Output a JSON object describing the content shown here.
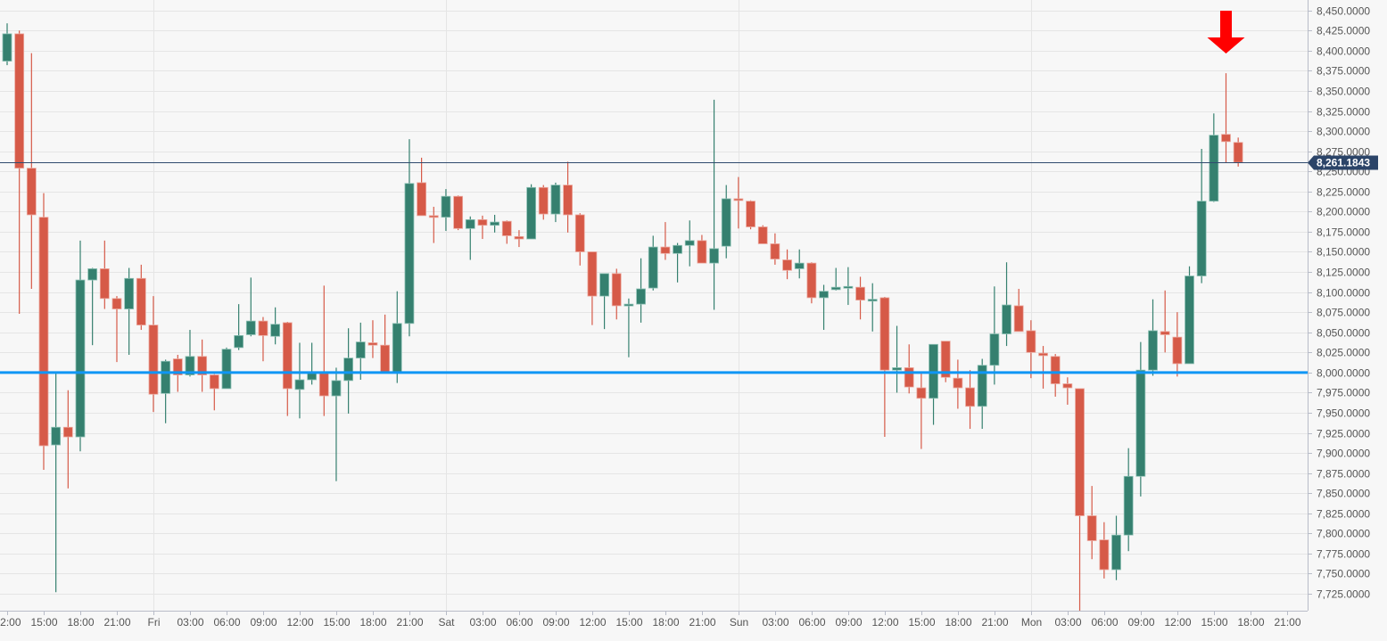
{
  "chart_data": {
    "type": "candlestick",
    "interval": "1h",
    "ylim": [
      7704,
      8463
    ],
    "grid": true,
    "colors": {
      "up": "#35806f",
      "down": "#d65a48",
      "support_line": "#0f96f5",
      "last_price_line": "#2f4a6e",
      "arrow": "#ff0000",
      "background": "#f7f7f7",
      "grid": "#e5e5e5"
    },
    "y_ticks": [
      8450,
      8425,
      8400,
      8375,
      8350,
      8325,
      8300,
      8275,
      8250,
      8225,
      8200,
      8175,
      8150,
      8125,
      8100,
      8075,
      8050,
      8025,
      8000,
      7975,
      7950,
      7925,
      7900,
      7875,
      7850,
      7825,
      7800,
      7775,
      7750,
      7725
    ],
    "y_tick_labels": [
      "8,450.0000",
      "8,425.0000",
      "8,400.0000",
      "8,375.0000",
      "8,350.0000",
      "8,325.0000",
      "8,300.0000",
      "8,275.0000",
      "8,250.0000",
      "8,225.0000",
      "8,200.0000",
      "8,175.0000",
      "8,150.0000",
      "8,125.0000",
      "8,100.0000",
      "8,075.0000",
      "8,050.0000",
      "8,025.0000",
      "8,000.0000",
      "7,975.0000",
      "7,950.0000",
      "7,925.0000",
      "7,900.0000",
      "7,875.0000",
      "7,850.0000",
      "7,825.0000",
      "7,800.0000",
      "7,775.0000",
      "7,750.0000",
      "7,725.0000"
    ],
    "x_ticks": [
      {
        "label": "12:00",
        "at": "Thu 12:00"
      },
      {
        "label": "15:00",
        "at": "Thu 15:00"
      },
      {
        "label": "18:00",
        "at": "Thu 18:00"
      },
      {
        "label": "21:00",
        "at": "Thu 21:00"
      },
      {
        "label": "Fri",
        "at": "Fri 00:00",
        "day": true
      },
      {
        "label": "03:00",
        "at": "Fri 03:00"
      },
      {
        "label": "06:00",
        "at": "Fri 06:00"
      },
      {
        "label": "09:00",
        "at": "Fri 09:00"
      },
      {
        "label": "12:00",
        "at": "Fri 12:00"
      },
      {
        "label": "15:00",
        "at": "Fri 15:00"
      },
      {
        "label": "18:00",
        "at": "Fri 18:00"
      },
      {
        "label": "21:00",
        "at": "Fri 21:00"
      },
      {
        "label": "Sat",
        "at": "Sat 00:00",
        "day": true
      },
      {
        "label": "03:00",
        "at": "Sat 03:00"
      },
      {
        "label": "06:00",
        "at": "Sat 06:00"
      },
      {
        "label": "09:00",
        "at": "Sat 09:00"
      },
      {
        "label": "12:00",
        "at": "Sat 12:00"
      },
      {
        "label": "15:00",
        "at": "Sat 15:00"
      },
      {
        "label": "18:00",
        "at": "Sat 18:00"
      },
      {
        "label": "21:00",
        "at": "Sat 21:00"
      },
      {
        "label": "Sun",
        "at": "Sun 00:00",
        "day": true
      },
      {
        "label": "03:00",
        "at": "Sun 03:00"
      },
      {
        "label": "06:00",
        "at": "Sun 06:00"
      },
      {
        "label": "09:00",
        "at": "Sun 09:00"
      },
      {
        "label": "12:00",
        "at": "Sun 12:00"
      },
      {
        "label": "15:00",
        "at": "Sun 15:00"
      },
      {
        "label": "18:00",
        "at": "Sun 18:00"
      },
      {
        "label": "21:00",
        "at": "Sun 21:00"
      },
      {
        "label": "Mon",
        "at": "Mon 00:00",
        "day": true
      },
      {
        "label": "03:00",
        "at": "Mon 03:00"
      },
      {
        "label": "06:00",
        "at": "Mon 06:00"
      },
      {
        "label": "09:00",
        "at": "Mon 09:00"
      },
      {
        "label": "12:00",
        "at": "Mon 12:00"
      },
      {
        "label": "15:00",
        "at": "Mon 15:00"
      },
      {
        "label": "18:00",
        "at": "Mon 18:00"
      },
      {
        "label": "21:00",
        "at": "Mon 21:00"
      }
    ],
    "candles_fields": [
      "time",
      "open",
      "high",
      "low",
      "close"
    ],
    "candles": [
      [
        "Thu 12:00",
        8387,
        8434,
        8382,
        8421
      ],
      [
        "Thu 13:00",
        8421,
        8425,
        8073,
        8254
      ],
      [
        "Thu 14:00",
        8254,
        8397,
        8104,
        8196
      ],
      [
        "Thu 15:00",
        8193,
        8223,
        7879,
        7909
      ],
      [
        "Thu 16:00",
        7910,
        7999,
        7727,
        7932
      ],
      [
        "Thu 17:00",
        7932,
        7978,
        7856,
        7920
      ],
      [
        "Thu 18:00",
        7920,
        8164,
        7902,
        8115
      ],
      [
        "Thu 19:00",
        8115,
        8130,
        8034,
        8129
      ],
      [
        "Thu 20:00",
        8129,
        8164,
        8079,
        8092
      ],
      [
        "Thu 21:00",
        8092,
        8095,
        8013,
        8079
      ],
      [
        "Thu 22:00",
        8079,
        8130,
        8022,
        8117
      ],
      [
        "Thu 23:00",
        8117,
        8134,
        8053,
        8059
      ],
      [
        "Fri 00:00",
        8059,
        8095,
        7951,
        7973
      ],
      [
        "Fri 01:00",
        7974,
        8016,
        7937,
        8014
      ],
      [
        "Fri 02:00",
        8017,
        8022,
        7976,
        7997
      ],
      [
        "Fri 03:00",
        7997,
        8053,
        7995,
        8020
      ],
      [
        "Fri 04:00",
        8020,
        8041,
        7976,
        7997
      ],
      [
        "Fri 05:00",
        7997,
        7998,
        7953,
        7980
      ],
      [
        "Fri 06:00",
        7980,
        8031,
        7980,
        8029
      ],
      [
        "Fri 07:00",
        8031,
        8085,
        8028,
        8046
      ],
      [
        "Fri 08:00",
        8047,
        8118,
        8045,
        8064
      ],
      [
        "Fri 09:00",
        8064,
        8069,
        8014,
        8046
      ],
      [
        "Fri 10:00",
        8045,
        8081,
        8035,
        8060
      ],
      [
        "Fri 11:00",
        8062,
        8063,
        7946,
        7980
      ],
      [
        "Fri 12:00",
        7979,
        8037,
        7943,
        7991
      ],
      [
        "Fri 13:00",
        7991,
        8037,
        7985,
        7999
      ],
      [
        "Fri 14:00",
        7999,
        8108,
        7946,
        7971
      ],
      [
        "Fri 15:00",
        7971,
        8006,
        7865,
        7990
      ],
      [
        "Fri 16:00",
        7990,
        8055,
        7949,
        8018
      ],
      [
        "Fri 17:00",
        8018,
        8062,
        7991,
        8038
      ],
      [
        "Fri 18:00",
        8037,
        8065,
        8018,
        8034
      ],
      [
        "Fri 19:00",
        8034,
        8072,
        8001,
        8001
      ],
      [
        "Fri 20:00",
        8001,
        8101,
        7987,
        8061
      ],
      [
        "Fri 21:00",
        8061,
        8290,
        8045,
        8235
      ],
      [
        "Fri 22:00",
        8236,
        8267,
        8195,
        8195
      ],
      [
        "Fri 23:00",
        8195,
        8206,
        8161,
        8193
      ],
      [
        "Sat 00:00",
        8193,
        8228,
        8176,
        8219
      ],
      [
        "Sat 01:00",
        8219,
        8220,
        8177,
        8179
      ],
      [
        "Sat 02:00",
        8179,
        8194,
        8140,
        8190
      ],
      [
        "Sat 03:00",
        8190,
        8195,
        8166,
        8183
      ],
      [
        "Sat 04:00",
        8183,
        8196,
        8174,
        8187
      ],
      [
        "Sat 05:00",
        8188,
        8189,
        8160,
        8170
      ],
      [
        "Sat 06:00",
        8169,
        8177,
        8156,
        8166
      ],
      [
        "Sat 07:00",
        8166,
        8234,
        8166,
        8230
      ],
      [
        "Sat 08:00",
        8230,
        8233,
        8190,
        8197
      ],
      [
        "Sat 09:00",
        8197,
        8236,
        8187,
        8233
      ],
      [
        "Sat 10:00",
        8233,
        8262,
        8174,
        8196
      ],
      [
        "Sat 11:00",
        8196,
        8198,
        8133,
        8150
      ],
      [
        "Sat 12:00",
        8150,
        8150,
        8059,
        8095
      ],
      [
        "Sat 13:00",
        8095,
        8123,
        8054,
        8123
      ],
      [
        "Sat 14:00",
        8123,
        8129,
        8066,
        8083
      ],
      [
        "Sat 15:00",
        8084,
        8092,
        8019,
        8085
      ],
      [
        "Sat 16:00",
        8085,
        8142,
        8062,
        8104
      ],
      [
        "Sat 17:00",
        8105,
        8170,
        8102,
        8156
      ],
      [
        "Sat 18:00",
        8156,
        8187,
        8140,
        8148
      ],
      [
        "Sat 19:00",
        8148,
        8161,
        8112,
        8158
      ],
      [
        "Sat 20:00",
        8158,
        8189,
        8132,
        8164
      ],
      [
        "Sat 21:00",
        8164,
        8171,
        8136,
        8136
      ],
      [
        "Sat 22:00",
        8136,
        8339,
        8078,
        8154
      ],
      [
        "Sat 23:00",
        8157,
        8233,
        8142,
        8216
      ],
      [
        "Sun 00:00",
        8216,
        8243,
        8179,
        8214
      ],
      [
        "Sun 01:00",
        8213,
        8214,
        8178,
        8181
      ],
      [
        "Sun 02:00",
        8181,
        8183,
        8160,
        8160
      ],
      [
        "Sun 03:00",
        8160,
        8173,
        8134,
        8141
      ],
      [
        "Sun 04:00",
        8140,
        8153,
        8116,
        8127
      ],
      [
        "Sun 05:00",
        8129,
        8153,
        8117,
        8136
      ],
      [
        "Sun 06:00",
        8136,
        8137,
        8086,
        8093
      ],
      [
        "Sun 07:00",
        8093,
        8109,
        8053,
        8101
      ],
      [
        "Sun 08:00",
        8103,
        8130,
        8102,
        8106
      ],
      [
        "Sun 09:00",
        8106,
        8131,
        8084,
        8107
      ],
      [
        "Sun 10:00",
        8106,
        8119,
        8066,
        8090
      ],
      [
        "Sun 11:00",
        8090,
        8111,
        8051,
        8091
      ],
      [
        "Sun 12:00",
        8093,
        8094,
        7920,
        8003
      ],
      [
        "Sun 13:00",
        8003,
        8058,
        7975,
        8006
      ],
      [
        "Sun 14:00",
        8006,
        8035,
        7974,
        7982
      ],
      [
        "Sun 15:00",
        7981,
        7999,
        7905,
        7968
      ],
      [
        "Sun 16:00",
        7968,
        8035,
        7935,
        8035
      ],
      [
        "Sun 17:00",
        8039,
        8039,
        7988,
        7994
      ],
      [
        "Sun 18:00",
        7993,
        8016,
        7955,
        7981
      ],
      [
        "Sun 19:00",
        7981,
        8003,
        7930,
        7958
      ],
      [
        "Sun 20:00",
        7958,
        8017,
        7930,
        8009
      ],
      [
        "Sun 21:00",
        8009,
        8107,
        7985,
        8048
      ],
      [
        "Sun 22:00",
        8048,
        8137,
        8033,
        8084
      ],
      [
        "Sun 23:00",
        8083,
        8104,
        8051,
        8051
      ],
      [
        "Mon 00:00",
        8052,
        8065,
        7993,
        8025
      ],
      [
        "Mon 01:00",
        8024,
        8033,
        7980,
        8021
      ],
      [
        "Mon 02:00",
        8020,
        8023,
        7970,
        7986
      ],
      [
        "Mon 03:00",
        7986,
        7994,
        7960,
        7981
      ],
      [
        "Mon 04:00",
        7980,
        7980,
        7703,
        7822
      ],
      [
        "Mon 05:00",
        7822,
        7859,
        7768,
        7791
      ],
      [
        "Mon 06:00",
        7792,
        7814,
        7744,
        7755
      ],
      [
        "Mon 07:00",
        7755,
        7822,
        7742,
        7798
      ],
      [
        "Mon 08:00",
        7798,
        7906,
        7778,
        7871
      ],
      [
        "Mon 09:00",
        7871,
        8038,
        7846,
        8003
      ],
      [
        "Mon 10:00",
        8003,
        8091,
        7996,
        8052
      ],
      [
        "Mon 11:00",
        8051,
        8102,
        8025,
        8047
      ],
      [
        "Mon 12:00",
        8044,
        8075,
        7995,
        8011
      ],
      [
        "Mon 13:00",
        8011,
        8132,
        8011,
        8120
      ],
      [
        "Mon 14:00",
        8120,
        8278,
        8111,
        8213
      ],
      [
        "Mon 15:00",
        8213,
        8322,
        8212,
        8295
      ],
      [
        "Mon 16:00",
        8296,
        8372,
        8261,
        8287
      ],
      [
        "Mon 17:00",
        8286,
        8292,
        8256,
        8261.1843
      ]
    ],
    "horizontal_line": {
      "value": 8000
    },
    "last_price": {
      "value": 8261.1843,
      "label": "8,261.1843"
    },
    "annotation": {
      "type": "down-arrow",
      "at": "Mon 16:00"
    }
  }
}
